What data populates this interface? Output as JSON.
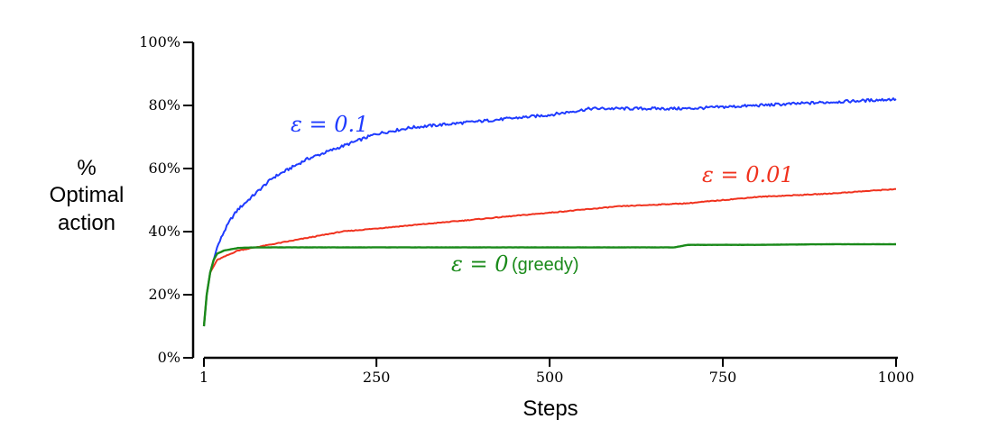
{
  "chart_data": {
    "type": "line",
    "xlabel": "Steps",
    "ylabel": [
      "%",
      "Optimal",
      "action"
    ],
    "xlim": [
      1,
      1000
    ],
    "ylim": [
      0,
      100
    ],
    "x_ticks": [
      1,
      250,
      500,
      750,
      1000
    ],
    "y_ticks": [
      0,
      20,
      40,
      60,
      80,
      100
    ],
    "x_tick_labels": [
      "1",
      "250",
      "500",
      "750",
      "1000"
    ],
    "y_tick_labels": [
      "0%",
      "20%",
      "40%",
      "60%",
      "80%",
      "100%"
    ],
    "grid": false,
    "series": [
      {
        "name": "ε = 0.1",
        "color": "#1f3bff",
        "x": [
          1,
          5,
          10,
          15,
          20,
          30,
          40,
          50,
          75,
          100,
          125,
          150,
          200,
          250,
          300,
          400,
          500,
          560,
          600,
          700,
          800,
          900,
          1000
        ],
        "y": [
          10,
          20,
          27,
          31,
          35,
          40,
          44,
          47,
          52,
          57,
          60,
          63,
          67,
          71,
          73,
          75,
          77,
          79,
          79,
          79,
          80,
          81,
          82
        ]
      },
      {
        "name": "ε = 0.01",
        "color": "#f0321e",
        "x": [
          1,
          5,
          10,
          15,
          20,
          30,
          50,
          75,
          100,
          150,
          200,
          250,
          300,
          400,
          500,
          600,
          700,
          800,
          900,
          1000
        ],
        "y": [
          10,
          20,
          27,
          29,
          31,
          32,
          34,
          35,
          36,
          38,
          40,
          41,
          42,
          44,
          46,
          48,
          49,
          51,
          52,
          53.5
        ]
      },
      {
        "name": "ε = 0 (greedy)",
        "color": "#1a8a1a",
        "x": [
          1,
          5,
          10,
          15,
          20,
          30,
          50,
          75,
          100,
          150,
          200,
          300,
          400,
          500,
          600,
          680,
          700,
          800,
          900,
          1000
        ],
        "y": [
          10,
          20,
          27,
          31,
          33,
          34,
          34.8,
          35,
          35,
          35,
          35,
          35,
          35,
          35,
          35,
          35,
          35.8,
          35.8,
          36,
          36
        ]
      }
    ],
    "annotations": [
      {
        "text": "ε = 0.1",
        "series": 0
      },
      {
        "text": "ε = 0.01",
        "series": 1
      },
      {
        "text": "ε = 0",
        "sub": "(greedy)",
        "series": 2
      }
    ]
  }
}
